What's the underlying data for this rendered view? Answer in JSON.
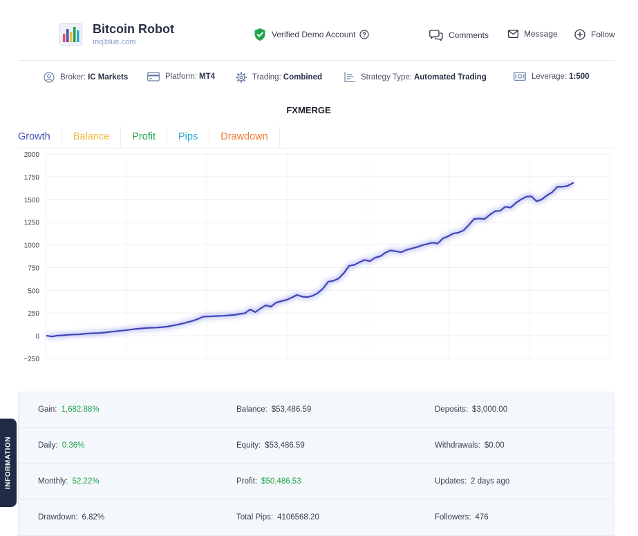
{
  "header": {
    "brand_name": "Bitcoin Robot",
    "brand_url": "mqlblue.com",
    "verified_label": "Verified Demo Account",
    "actions": {
      "comments": "Comments",
      "message": "Message",
      "follow": "Follow"
    }
  },
  "info_bar": {
    "broker": {
      "label": "Broker:",
      "value": "IC Markets"
    },
    "platform": {
      "label": "Platform:",
      "value": "MT4"
    },
    "trading": {
      "label": "Trading:",
      "value": "Combined"
    },
    "strategy": {
      "label": "Strategy Type:",
      "value": "Automated Trading"
    },
    "leverage": {
      "label": "Leverage:",
      "value": "1:500"
    }
  },
  "chart_title": "FXMERGE",
  "tabs": [
    "Growth",
    "Balance",
    "Profit",
    "Pips",
    "Drawdown"
  ],
  "colors": {
    "accent": "#4a4fb5",
    "line": "#3f45b8",
    "green": "#1fa34a",
    "balance_tab": "#f2b93a",
    "pips_tab": "#2aa7d8",
    "drawdown_tab": "#ef7a35",
    "sidebar": "#1f2b47"
  },
  "chart_data": {
    "type": "line",
    "title": "FXMERGE",
    "xlabel": "",
    "ylabel": "",
    "ylim": [
      -250,
      2000
    ],
    "yticks": [
      "2000",
      "1750",
      "1500",
      "1250",
      "1000",
      "750",
      "500",
      "250",
      "0",
      "−250"
    ],
    "grid": true,
    "series": [
      {
        "values": [
          0,
          -8,
          2,
          5,
          10,
          14,
          15,
          20,
          25,
          28,
          30,
          35,
          42,
          48,
          55,
          60,
          68,
          75,
          80,
          85,
          88,
          90,
          95,
          100,
          110,
          122,
          135,
          150,
          165,
          185,
          210,
          212,
          215,
          218,
          220,
          225,
          230,
          240,
          248,
          290,
          260,
          300,
          335,
          320,
          365,
          380,
          395,
          420,
          450,
          430,
          425,
          440,
          470,
          520,
          595,
          605,
          630,
          690,
          770,
          780,
          810,
          835,
          820,
          860,
          875,
          915,
          940,
          930,
          920,
          945,
          960,
          975,
          995,
          1010,
          1025,
          1015,
          1070,
          1095,
          1125,
          1135,
          1160,
          1220,
          1285,
          1290,
          1285,
          1330,
          1370,
          1375,
          1420,
          1410,
          1460,
          1500,
          1530,
          1535,
          1480,
          1500,
          1545,
          1580,
          1640,
          1640,
          1650,
          1682
        ]
      }
    ]
  },
  "information_label": "INFORMATION",
  "stats": [
    [
      {
        "label": "Gain:",
        "value": "1,682.88%",
        "green": true
      },
      {
        "label": "Balance:",
        "value": "$53,486.59",
        "green": false
      },
      {
        "label": "Deposits:",
        "value": "$3,000.00",
        "green": false
      }
    ],
    [
      {
        "label": "Daily:",
        "value": "0.36%",
        "green": true
      },
      {
        "label": "Equity:",
        "value": "$53,486.59",
        "green": false
      },
      {
        "label": "Withdrawals:",
        "value": "$0.00",
        "green": false
      }
    ],
    [
      {
        "label": "Monthly:",
        "value": "52.22%",
        "green": true
      },
      {
        "label": "Profit:",
        "value": "$50,486.53",
        "green": true
      },
      {
        "label": "Updates:",
        "value": "2 days ago",
        "green": false
      }
    ],
    [
      {
        "label": "Drawdown:",
        "value": "6.82%",
        "green": false
      },
      {
        "label": "Total Pips:",
        "value": "4106568.20",
        "green": false
      },
      {
        "label": "Followers:",
        "value": "476",
        "green": false
      }
    ]
  ]
}
